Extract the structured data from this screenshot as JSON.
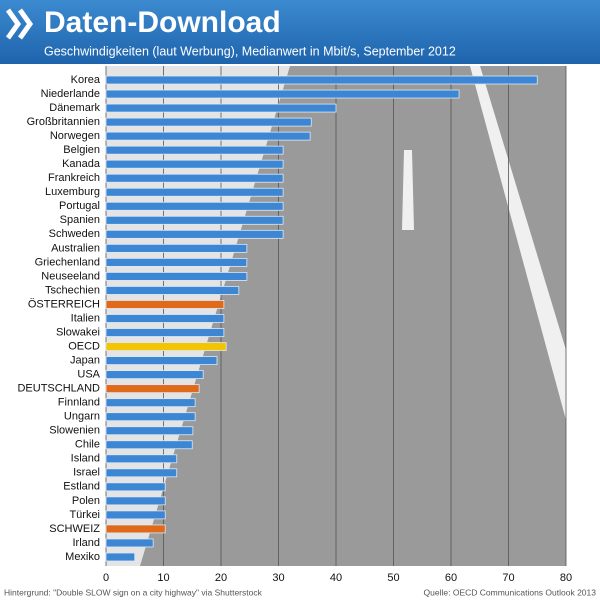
{
  "chart_data": {
    "type": "barh",
    "title": "Daten-Download",
    "subtitle": "Geschwindigkeiten (laut Werbung), Medianwert in Mbit/s, September 2012",
    "categories": [
      "Korea",
      "Niederlande",
      "Dänemark",
      "Großbritannien",
      "Norwegen",
      "Belgien",
      "Kanada",
      "Frankreich",
      "Luxemburg",
      "Portugal",
      "Spanien",
      "Schweden",
      "Australien",
      "Griechenland",
      "Neuseeland",
      "Tschechien",
      "ÖSTERREICH",
      "Italien",
      "Slowakei",
      "OECD",
      "Japan",
      "USA",
      "DEUTSCHLAND",
      "Finnland",
      "Ungarn",
      "Slowenien",
      "Chile",
      "Island",
      "Israel",
      "Estland",
      "Polen",
      "Türkei",
      "SCHWEIZ",
      "Irland",
      "Mexiko"
    ],
    "values": [
      75,
      61.4,
      40,
      35.7,
      35.5,
      30.8,
      30.8,
      30.8,
      30.8,
      30.8,
      30.8,
      30.8,
      24.5,
      24.5,
      24.5,
      23.1,
      20.5,
      20.5,
      20.5,
      20.9,
      19.3,
      16.9,
      16.2,
      15.5,
      15.5,
      15.1,
      15,
      12.3,
      12.3,
      10.3,
      10.3,
      10.3,
      10.3,
      8.2,
      5
    ],
    "colors": [
      "#3d86d4",
      "#3d86d4",
      "#3d86d4",
      "#3d86d4",
      "#3d86d4",
      "#3d86d4",
      "#3d86d4",
      "#3d86d4",
      "#3d86d4",
      "#3d86d4",
      "#3d86d4",
      "#3d86d4",
      "#3d86d4",
      "#3d86d4",
      "#3d86d4",
      "#3d86d4",
      "#e06a1a",
      "#3d86d4",
      "#3d86d4",
      "#f5c400",
      "#3d86d4",
      "#3d86d4",
      "#e06a1a",
      "#3d86d4",
      "#3d86d4",
      "#3d86d4",
      "#3d86d4",
      "#3d86d4",
      "#3d86d4",
      "#3d86d4",
      "#3d86d4",
      "#3d86d4",
      "#e06a1a",
      "#3d86d4",
      "#3d86d4"
    ],
    "xlim": [
      0,
      80
    ],
    "xticks": [
      0,
      10,
      20,
      30,
      40,
      50,
      60,
      70,
      80
    ],
    "grid": true,
    "background_credit": "Hintergrund: \"Double SLOW sign on a city highway\" via Shutterstock",
    "source": "Quelle: OECD Communications Outlook 2013"
  }
}
